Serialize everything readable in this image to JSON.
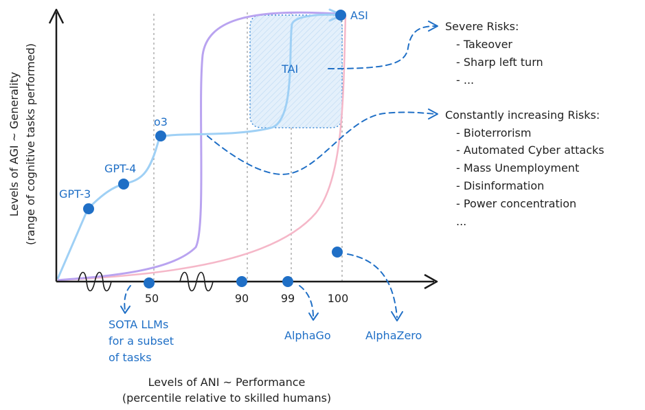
{
  "axes": {
    "x_label_line1": "Levels of ANI ~ Performance",
    "x_label_line2": "(percentile relative to skilled humans)",
    "y_label_line1": "Levels of AGI ~ Generality",
    "y_label_line2": "(range of cognitive tasks performed)",
    "x_ticks": [
      "50",
      "90",
      "99",
      "100"
    ]
  },
  "points": {
    "gpt3": "GPT-3",
    "gpt4": "GPT-4",
    "o3": "o3",
    "asi": "ASI",
    "tai": "TAI"
  },
  "annotations": {
    "sota_line1": "SOTA LLMs",
    "sota_line2": "for a subset",
    "sota_line3": "of tasks",
    "alphago": "AlphaGo",
    "alphazero": "AlphaZero"
  },
  "severe_risks": {
    "title": "Severe Risks:",
    "items": [
      "- Takeover",
      "- Sharp left turn",
      "- ..."
    ]
  },
  "increasing_risks": {
    "title": "Constantly increasing Risks:",
    "items": [
      "- Bioterrorism",
      "- Automated Cyber attacks",
      "- Mass Unemployment",
      "- Disinformation",
      "- Power concentration",
      "..."
    ]
  },
  "colors": {
    "blue": "#1f6fc6",
    "light_blue": "#9fd0f5",
    "purple": "#b9a3f0",
    "pink": "#f5b7c8",
    "tai_fill": "#dfeefb"
  }
}
